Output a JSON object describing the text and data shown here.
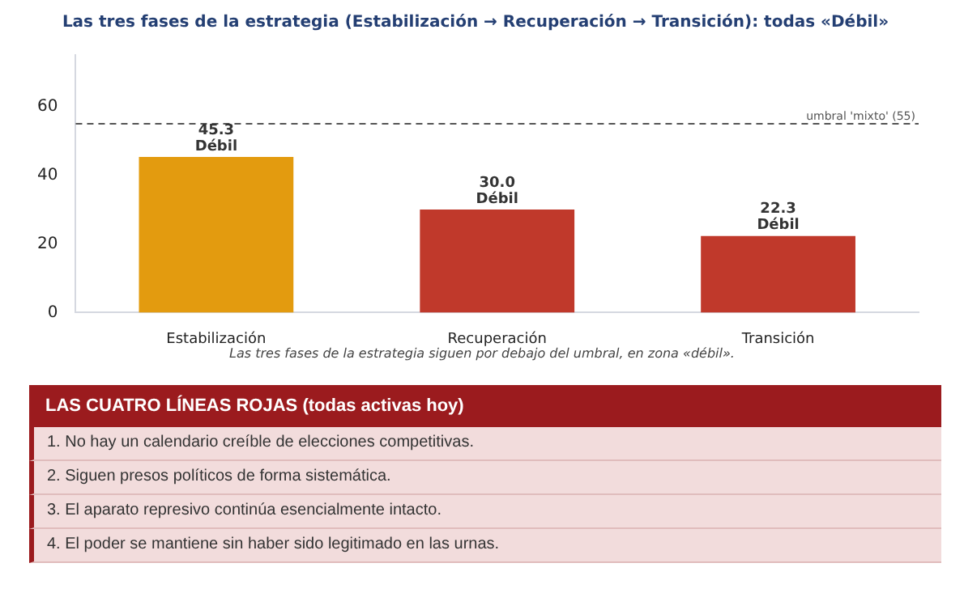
{
  "chart_data": [
    {
      "type": "bar",
      "title": "Las tres fases de la estrategia (Estabilización → Recuperación → Transición): todas «Débil»",
      "categories": [
        "Estabilización",
        "Recuperación",
        "Transición"
      ],
      "values": [
        45.3,
        30.0,
        22.3
      ],
      "colors": [
        "#e39b0f",
        "#c0392b",
        "#c0392b"
      ],
      "value_labels": [
        "45.3\nDébil",
        "30.0\nDébil",
        "22.3\nDébil"
      ],
      "ylim": [
        0,
        75
      ],
      "yticks": [
        0,
        20,
        40,
        60
      ],
      "grid": false,
      "legend": false,
      "ref_lines": [
        {
          "axis": "y",
          "value": 55,
          "label": "umbral 'mixto' (55)",
          "color": "#555555",
          "line_style": "dashed"
        }
      ],
      "annotations": [
        "Las tres fases de la estrategia siguen por debajo del umbral, en zona «débil»."
      ]
    },
    {
      "type": "other",
      "title": "LAS CUATRO LÍNEAS ROJAS (todas activas hoy)",
      "annotations": [
        "1. No hay un calendario creíble de elecciones competitivas.",
        "2. Siguen presos políticos de forma sistemática.",
        "3. El aparato represivo continúa esencialmente intacto.",
        "4. El poder se mantiene sin haber sido legitimado en las urnas."
      ]
    }
  ]
}
